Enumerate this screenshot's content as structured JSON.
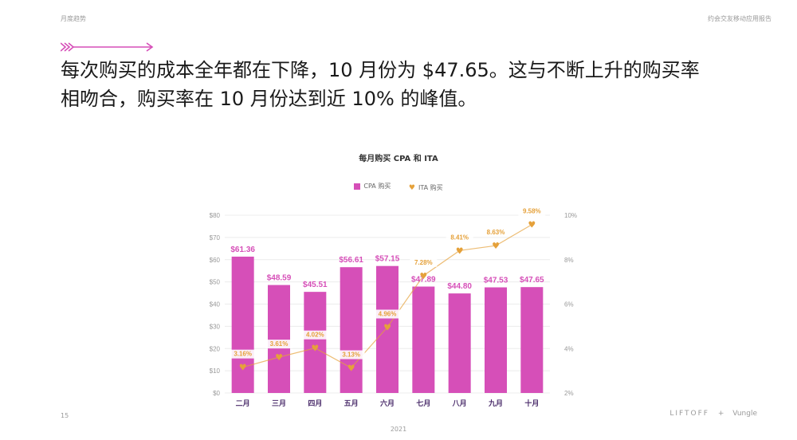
{
  "header": {
    "section": "月度趋势",
    "report": "约会交友移动应用报告"
  },
  "headline": "每次购买的成本全年都在下降，10 月份为 $47.65。这与不断上升的购买率相吻合，购买率在 10 月份达到近 10% 的峰值。",
  "colors": {
    "bar": "#d64fb8",
    "line": "#e5a13a",
    "accent": "#d64fb8",
    "axis_text": "#999999",
    "category_text": "#4b2d6b"
  },
  "chart_data": {
    "type": "bar",
    "title": "每月购买 CPA 和 ITA",
    "categories": [
      "二月",
      "三月",
      "四月",
      "五月",
      "六月",
      "七月",
      "八月",
      "九月",
      "十月"
    ],
    "series": [
      {
        "name": "CPA 购买",
        "type": "bar",
        "axis": "left",
        "values": [
          61.36,
          48.59,
          45.51,
          56.61,
          57.15,
          47.89,
          44.8,
          47.53,
          47.65
        ],
        "labels": [
          "$61.36",
          "$48.59",
          "$45.51",
          "$56.61",
          "$57.15",
          "$47.89",
          "$44.80",
          "$47.53",
          "$47.65"
        ]
      },
      {
        "name": "ITA 购买",
        "type": "line",
        "axis": "right",
        "values": [
          3.16,
          3.61,
          4.02,
          3.13,
          4.96,
          7.28,
          8.41,
          8.63,
          9.58
        ],
        "labels": [
          "3.16%",
          "3.61%",
          "4.02%",
          "3.13%",
          "4.96%",
          "7.28%",
          "8.41%",
          "8.63%",
          "9.58%"
        ]
      }
    ],
    "y_left": {
      "min": 0,
      "max": 80,
      "ticks": [
        "$0",
        "$10",
        "$20",
        "$30",
        "$40",
        "$50",
        "$60",
        "$70",
        "$80"
      ]
    },
    "y_right": {
      "min": 2,
      "max": 10,
      "ticks": [
        "2%",
        "4%",
        "6%",
        "8%",
        "10%"
      ]
    },
    "xlabel": "2021",
    "grid": true,
    "legend_position": "top-center"
  },
  "footer": {
    "page": "15",
    "year": "2021",
    "logo_liftoff": "LIFTOFF",
    "logo_sep": "+",
    "logo_vungle": "Vungle"
  }
}
